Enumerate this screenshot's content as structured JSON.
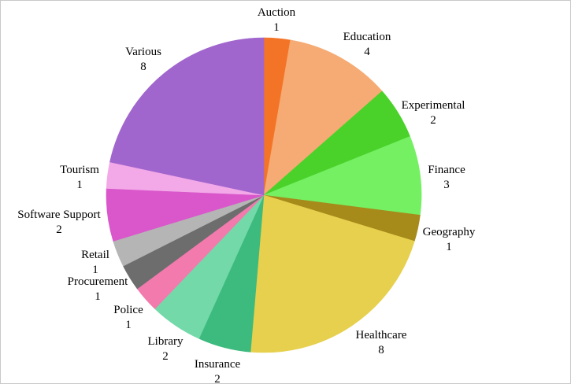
{
  "chart_data": {
    "type": "pie",
    "title": "",
    "start": "12 o'clock",
    "direction": "clockwise",
    "legend": "none",
    "slices": [
      {
        "label": "Auction",
        "value": 1,
        "color": "#f47427"
      },
      {
        "label": "Education",
        "value": 4,
        "color": "#f5ab73"
      },
      {
        "label": "Experimental",
        "value": 2,
        "color": "#4ad22a"
      },
      {
        "label": "Finance",
        "value": 3,
        "color": "#74f062"
      },
      {
        "label": "Geography",
        "value": 1,
        "color": "#a68a1a"
      },
      {
        "label": "Healthcare",
        "value": 8,
        "color": "#e6d04d"
      },
      {
        "label": "Insurance",
        "value": 2,
        "color": "#3dba7e"
      },
      {
        "label": "Library",
        "value": 2,
        "color": "#73d9a9"
      },
      {
        "label": "Police",
        "value": 1,
        "color": "#f27aad"
      },
      {
        "label": "Procurement",
        "value": 1,
        "color": "#6d6d6d"
      },
      {
        "label": "Retail",
        "value": 1,
        "color": "#b5b5b5"
      },
      {
        "label": "Software Support",
        "value": 2,
        "color": "#d957cb"
      },
      {
        "label": "Tourism",
        "value": 1,
        "color": "#f3a8e8"
      },
      {
        "label": "Various",
        "value": 8,
        "color": "#a066cd"
      }
    ]
  }
}
